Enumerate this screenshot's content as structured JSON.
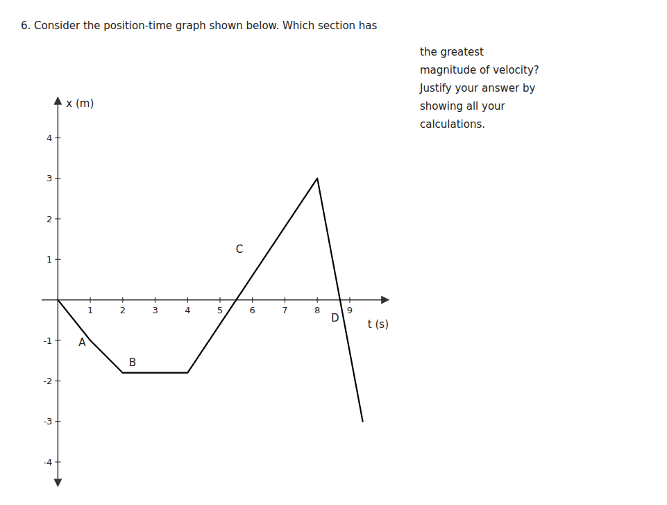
{
  "chart_data": {
    "type": "line",
    "title": "6.  Consider the position-time graph shown below.  Which section has",
    "subtitle": [
      "the greatest",
      "magnitude of velocity?",
      "Justify your answer by",
      "showing all your",
      "calculations."
    ],
    "x_label": "t (s)",
    "y_label": "x (m)",
    "x": [
      0,
      1,
      2,
      4,
      8,
      9.4
    ],
    "values": [
      0,
      -1,
      -1.8,
      -1.8,
      3,
      -3
    ],
    "color": "#000000",
    "annotations": [
      {
        "text": "A",
        "x": 0.75,
        "y": -1.05
      },
      {
        "text": "B",
        "x": 2.3,
        "y": -1.55
      },
      {
        "text": "C",
        "x": 5.6,
        "y": 1.25
      },
      {
        "text": "D",
        "x": 8.55,
        "y": -0.45
      }
    ],
    "xlim": [
      -0.5,
      10.2
    ],
    "ylim": [
      -4.6,
      5.0
    ],
    "xticks": [
      1,
      2,
      3,
      4,
      5,
      6,
      7,
      8,
      9
    ],
    "yticks": [
      -4,
      -3,
      -2,
      -1,
      1,
      2,
      3,
      4
    ],
    "grid": false
  }
}
